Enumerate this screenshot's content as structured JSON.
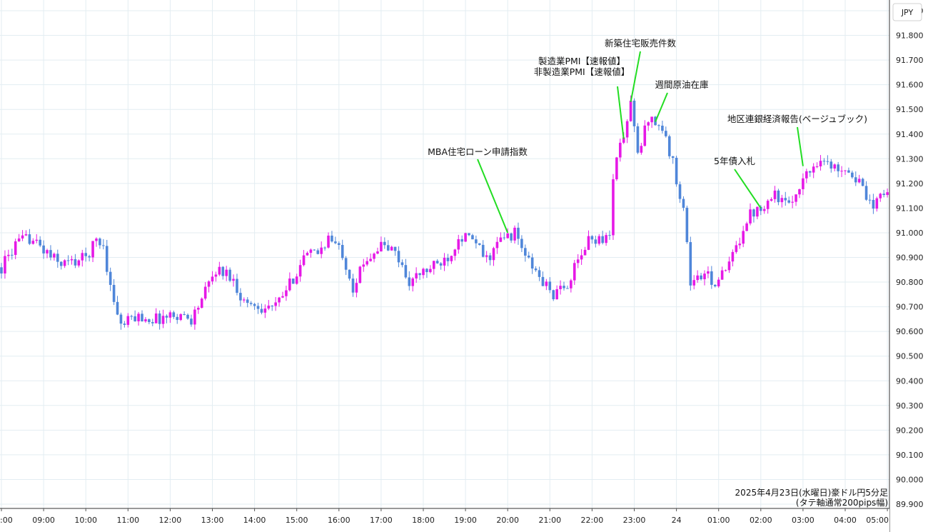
{
  "colors": {
    "up": "#e619e6",
    "down": "#4f86d9",
    "grid": "#e3edf2",
    "axis": "#333333",
    "annotation_line": "#22dd22"
  },
  "currency_label": "JPY",
  "caption": {
    "line1": "2025年4月23日(水曜日)豪ドル円5分足",
    "line2": "(タテ軸通常200pips幅)"
  },
  "chart_data": {
    "type": "candlestick",
    "y_axis": {
      "range": [
        89.9,
        91.9
      ],
      "ticks": [
        "89.900",
        "90.000",
        "90.100",
        "90.200",
        "90.300",
        "90.400",
        "90.500",
        "90.600",
        "90.700",
        "90.800",
        "90.900",
        "91.000",
        "91.100",
        "91.200",
        "91.300",
        "91.400",
        "91.500",
        "91.600",
        "91.700",
        "91.800",
        "91.900"
      ]
    },
    "x_axis": {
      "ticks": [
        ":00",
        "09:00",
        "10:00",
        "11:00",
        "12:00",
        "13:00",
        "14:00",
        "15:00",
        "16:00",
        "17:00",
        "18:00",
        "19:00",
        "20:00",
        "21:00",
        "22:00",
        "23:00",
        "24",
        "01:00",
        "02:00",
        "03:00",
        "04:00",
        "05:00"
      ]
    },
    "grid": true,
    "anchors": [
      {
        "time": "08:00",
        "price": 90.86
      },
      {
        "time": "08:20",
        "price": 90.95
      },
      {
        "time": "08:40",
        "price": 90.98
      },
      {
        "time": "09:00",
        "price": 90.93
      },
      {
        "time": "09:20",
        "price": 90.88
      },
      {
        "time": "09:40",
        "price": 90.88
      },
      {
        "time": "10:00",
        "price": 90.9
      },
      {
        "time": "10:15",
        "price": 90.97
      },
      {
        "time": "10:25",
        "price": 90.95
      },
      {
        "time": "10:35",
        "price": 90.78
      },
      {
        "time": "10:50",
        "price": 90.62
      },
      {
        "time": "11:10",
        "price": 90.66
      },
      {
        "time": "11:40",
        "price": 90.65
      },
      {
        "time": "12:10",
        "price": 90.67
      },
      {
        "time": "12:30",
        "price": 90.65
      },
      {
        "time": "12:50",
        "price": 90.76
      },
      {
        "time": "13:05",
        "price": 90.85
      },
      {
        "time": "13:25",
        "price": 90.83
      },
      {
        "time": "13:45",
        "price": 90.72
      },
      {
        "time": "14:10",
        "price": 90.7
      },
      {
        "time": "14:30",
        "price": 90.7
      },
      {
        "time": "14:50",
        "price": 90.79
      },
      {
        "time": "15:10",
        "price": 90.9
      },
      {
        "time": "15:30",
        "price": 90.92
      },
      {
        "time": "15:45",
        "price": 90.98
      },
      {
        "time": "16:05",
        "price": 90.92
      },
      {
        "time": "16:20",
        "price": 90.78
      },
      {
        "time": "16:40",
        "price": 90.9
      },
      {
        "time": "17:00",
        "price": 90.95
      },
      {
        "time": "17:20",
        "price": 90.92
      },
      {
        "time": "17:40",
        "price": 90.8
      },
      {
        "time": "18:00",
        "price": 90.84
      },
      {
        "time": "18:20",
        "price": 90.87
      },
      {
        "time": "18:40",
        "price": 90.92
      },
      {
        "time": "18:50",
        "price": 90.99
      },
      {
        "time": "19:10",
        "price": 90.97
      },
      {
        "time": "19:30",
        "price": 90.89
      },
      {
        "time": "19:50",
        "price": 90.97
      },
      {
        "time": "20:10",
        "price": 91.0
      },
      {
        "time": "20:30",
        "price": 90.88
      },
      {
        "time": "20:50",
        "price": 90.8
      },
      {
        "time": "21:05",
        "price": 90.75
      },
      {
        "time": "21:20",
        "price": 90.77
      },
      {
        "time": "21:40",
        "price": 90.88
      },
      {
        "time": "21:55",
        "price": 90.97
      },
      {
        "time": "22:10",
        "price": 90.98
      },
      {
        "time": "22:25",
        "price": 90.98
      },
      {
        "time": "22:30",
        "price": 91.24
      },
      {
        "time": "22:40",
        "price": 91.35
      },
      {
        "time": "22:50",
        "price": 91.45
      },
      {
        "time": "22:55",
        "price": 91.53
      },
      {
        "time": "23:05",
        "price": 91.31
      },
      {
        "time": "23:20",
        "price": 91.47
      },
      {
        "time": "23:30",
        "price": 91.45
      },
      {
        "time": "23:40",
        "price": 91.42
      },
      {
        "time": "23:55",
        "price": 91.28
      },
      {
        "time": "00:10",
        "price": 91.1
      },
      {
        "time": "00:20",
        "price": 90.8
      },
      {
        "time": "00:40",
        "price": 90.83
      },
      {
        "time": "00:55",
        "price": 90.8
      },
      {
        "time": "01:10",
        "price": 90.84
      },
      {
        "time": "01:25",
        "price": 90.94
      },
      {
        "time": "01:40",
        "price": 91.06
      },
      {
        "time": "01:55",
        "price": 91.1
      },
      {
        "time": "02:05",
        "price": 91.12
      },
      {
        "time": "02:20",
        "price": 91.16
      },
      {
        "time": "02:40",
        "price": 91.1
      },
      {
        "time": "02:55",
        "price": 91.2
      },
      {
        "time": "03:10",
        "price": 91.25
      },
      {
        "time": "03:25",
        "price": 91.31
      },
      {
        "time": "03:40",
        "price": 91.26
      },
      {
        "time": "04:00",
        "price": 91.27
      },
      {
        "time": "04:20",
        "price": 91.2
      },
      {
        "time": "04:40",
        "price": 91.08
      },
      {
        "time": "04:50",
        "price": 91.18
      },
      {
        "time": "05:00",
        "price": 91.16
      }
    ],
    "annotations": [
      {
        "lines": [
          "MBA住宅ローン申請指数"
        ],
        "time": "20:00",
        "price": 91.0
      },
      {
        "lines": [
          "製造業PMI【速報値】",
          "非製造業PMI【速報値】"
        ],
        "time": "22:45",
        "price": 91.38
      },
      {
        "lines": [
          "新築住宅販売件数"
        ],
        "time": "22:55",
        "price": 91.53
      },
      {
        "lines": [
          "週間原油在庫"
        ],
        "time": "23:30",
        "price": 91.45
      },
      {
        "lines": [
          "5年債入札"
        ],
        "time": "02:00",
        "price": 91.1
      },
      {
        "lines": [
          "地区連銀経済報告(ベージュブック)"
        ],
        "time": "03:00",
        "price": 91.27
      }
    ]
  }
}
